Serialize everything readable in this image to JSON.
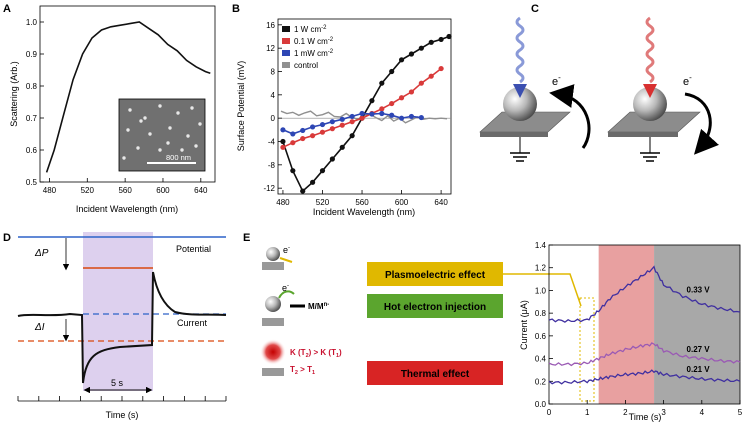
{
  "panels": {
    "a": "A",
    "b": "B",
    "c": "C",
    "d": "D",
    "e": "E"
  },
  "colors": {
    "black": "#111111",
    "red": "#d93a3a",
    "blue": "#2d46b4",
    "gray": "#909090",
    "orange": "#d9480f",
    "purple_band": "#ddd0ee",
    "pink_band": "#e8a0a0",
    "gray_band": "#a8a8a8",
    "lilac": "#9a5ab4",
    "ind": "#4030a0",
    "yellow_box": "#e0b800",
    "green_box": "#5ba52e",
    "red_box": "#d82424"
  },
  "chart_data": [
    {
      "type": "line",
      "panel": "A",
      "xlabel": "Incident Wavelength (nm)",
      "ylabel": "Scattering (Arb.)",
      "xlim": [
        470,
        655
      ],
      "ylim": [
        0.5,
        1.05
      ],
      "xticks": [
        "480",
        "520",
        "560",
        "600",
        "640"
      ],
      "xtick_vals": [
        480,
        520,
        560,
        600,
        640
      ],
      "yticks": [
        "0.5",
        "0.6",
        "0.7",
        "0.8",
        "0.9",
        "1.0"
      ],
      "ytick_vals": [
        0.5,
        0.6,
        0.7,
        0.8,
        0.9,
        1.0
      ],
      "series": [
        {
          "name": "scattering",
          "x": [
            477,
            485,
            495,
            505,
            515,
            525,
            535,
            545,
            555,
            565,
            575,
            585,
            595,
            605,
            615,
            625,
            635,
            645,
            650
          ],
          "y": [
            0.53,
            0.6,
            0.71,
            0.82,
            0.9,
            0.95,
            0.975,
            0.985,
            0.99,
            0.995,
            1.0,
            0.98,
            0.96,
            0.93,
            0.91,
            0.88,
            0.86,
            0.845,
            0.84
          ]
        }
      ],
      "inset_label": "800 nm"
    },
    {
      "type": "line",
      "panel": "B",
      "xlabel": "Incident Wavelength (nm)",
      "ylabel": "Surface Potential (mV)",
      "xlim": [
        475,
        650
      ],
      "ylim": [
        -13,
        17
      ],
      "xticks": [
        "480",
        "520",
        "560",
        "600",
        "640"
      ],
      "xtick_vals": [
        480,
        520,
        560,
        600,
        640
      ],
      "yticks": [
        "-12",
        "-8",
        "-4",
        "0",
        "4",
        "8",
        "12",
        "16"
      ],
      "ytick_vals": [
        -12,
        -8,
        -4,
        0,
        4,
        8,
        12,
        16
      ],
      "legend": [
        {
          "base": "1 W cm",
          "sup": "-2"
        },
        {
          "base": "0.1 W cm",
          "sup": "-2"
        },
        {
          "base": "1 mW cm",
          "sup": "-2"
        },
        {
          "base": "control",
          "sup": ""
        }
      ],
      "series": [
        {
          "name": "1 W cm-2",
          "color": "black",
          "x": [
            480,
            490,
            500,
            510,
            520,
            530,
            540,
            550,
            560,
            570,
            580,
            590,
            600,
            610,
            620,
            630,
            640,
            648
          ],
          "y": [
            -4,
            -9,
            -12.5,
            -11,
            -9,
            -7,
            -5,
            -3,
            0,
            3,
            6,
            8,
            10,
            11,
            12,
            13,
            13.5,
            14
          ]
        },
        {
          "name": "0.1 W cm-2",
          "color": "red",
          "x": [
            480,
            490,
            500,
            510,
            520,
            530,
            540,
            550,
            560,
            570,
            580,
            590,
            600,
            610,
            620,
            630,
            640
          ],
          "y": [
            -5,
            -4.2,
            -3.5,
            -3,
            -2.4,
            -1.8,
            -1.2,
            -0.6,
            0,
            0.8,
            1.6,
            2.5,
            3.5,
            4.5,
            6,
            7.2,
            8.5
          ]
        },
        {
          "name": "1 mW cm-2",
          "color": "blue",
          "x": [
            480,
            490,
            500,
            510,
            520,
            530,
            540,
            550,
            560,
            570,
            580,
            590,
            600,
            610,
            620
          ],
          "y": [
            -2,
            -2.7,
            -2.1,
            -1.5,
            -1.1,
            -0.6,
            -0.2,
            0.3,
            0.8,
            0.7,
            0.8,
            0.5,
            0,
            0.3,
            0.1
          ]
        },
        {
          "name": "control",
          "color": "gray",
          "x": [
            478,
            484,
            490,
            496,
            502,
            508,
            514,
            520,
            526,
            532,
            538,
            544,
            550,
            556,
            562,
            568,
            574,
            580,
            586,
            592,
            598,
            604,
            610,
            616,
            622,
            628,
            634,
            640,
            646
          ],
          "y": [
            1.2,
            0.8,
            1.0,
            0.5,
            0.9,
            1.2,
            0.4,
            0.6,
            1.0,
            0.3,
            0.2,
            0.8,
            0.1,
            -0.2,
            0.5,
            0.7,
            0.1,
            -0.4,
            0.4,
            -0.5,
            0,
            -0.8,
            -0.3,
            0.2,
            -0.2,
            0,
            -0.1,
            0,
            -0.1
          ]
        }
      ]
    },
    {
      "type": "line",
      "panel": "D",
      "xlabel": "Time (s)",
      "annotations": {
        "delta_p": "ΔP",
        "delta_i": "ΔI",
        "potential": "Potential",
        "current": "Current",
        "duration": "5 s"
      }
    },
    {
      "type": "line",
      "panel": "E",
      "xlabel": "Time (s)",
      "ylabel": "Current (μA)",
      "xlim": [
        0,
        5
      ],
      "ylim": [
        0,
        1.4
      ],
      "xticks": [
        "0",
        "1",
        "2",
        "3",
        "4",
        "5"
      ],
      "xtick_vals": [
        0,
        1,
        2,
        3,
        4,
        5
      ],
      "yticks": [
        "0.0",
        "0.2",
        "0.4",
        "0.6",
        "0.8",
        "1.0",
        "1.2",
        "1.4"
      ],
      "ytick_vals": [
        0,
        0.2,
        0.4,
        0.6,
        0.8,
        1.0,
        1.2,
        1.4
      ],
      "bands": [
        {
          "from": 1.3,
          "to": 2.75,
          "color": "pink_band"
        },
        {
          "from": 2.75,
          "to": 5,
          "color": "gray_band"
        }
      ],
      "series": [
        {
          "name": "0.33 V",
          "label": "0.33 V",
          "x": [
            0,
            0.5,
            1.0,
            1.3,
            1.6,
            2.0,
            2.4,
            2.75,
            3.0,
            3.5,
            4.0,
            4.5,
            5.0
          ],
          "y": [
            0.74,
            0.73,
            0.74,
            0.82,
            0.93,
            1.03,
            1.12,
            1.2,
            1.05,
            0.95,
            0.88,
            0.84,
            0.81
          ],
          "color": "ind"
        },
        {
          "name": "0.27 V",
          "label": "0.27 V",
          "x": [
            0,
            0.5,
            1.0,
            1.3,
            1.6,
            2.0,
            2.4,
            2.75,
            3.0,
            3.5,
            4.0,
            4.5,
            5.0
          ],
          "y": [
            0.35,
            0.35,
            0.36,
            0.4,
            0.44,
            0.48,
            0.51,
            0.53,
            0.47,
            0.42,
            0.4,
            0.38,
            0.37
          ],
          "color": "lilac"
        },
        {
          "name": "0.21 V",
          "label": "0.21 V",
          "x": [
            0,
            0.5,
            1.0,
            1.3,
            1.6,
            2.0,
            2.4,
            2.75,
            3.0,
            3.5,
            4.0,
            4.5,
            5.0
          ],
          "y": [
            0.19,
            0.19,
            0.2,
            0.22,
            0.24,
            0.26,
            0.27,
            0.29,
            0.26,
            0.24,
            0.22,
            0.21,
            0.2
          ],
          "color": "ind"
        }
      ]
    }
  ],
  "diagram_c": {
    "electron": "e",
    "electron_sup": "-"
  },
  "diagram_e": {
    "electron": "e",
    "electron_sup": "-",
    "redox": "M/M",
    "redox_sup": "n-",
    "k_relation": "K (T",
    "k_sub2": "2",
    "k_mid": ") > K (T",
    "k_sub1": "1",
    "k_end": ")",
    "t_relation": "T",
    "t_rel_mid": " > T",
    "labels": [
      "Plasmoelectric effect",
      "Hot electron injection",
      "Thermal effect"
    ]
  }
}
